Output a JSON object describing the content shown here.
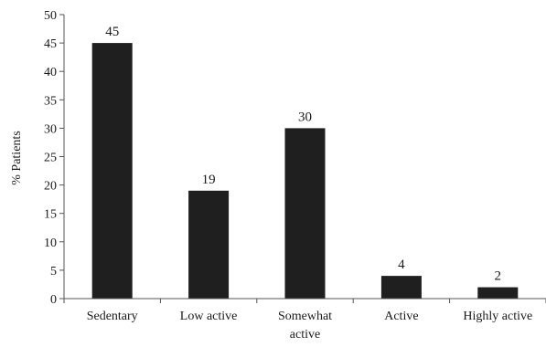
{
  "chart_data": {
    "type": "bar",
    "title": "",
    "xlabel": "",
    "ylabel": "% Patients",
    "categories": [
      [
        "Sedentary"
      ],
      [
        "Low active"
      ],
      [
        "Somewhat",
        "active"
      ],
      [
        "Active"
      ],
      [
        "Highly active"
      ]
    ],
    "values": [
      45,
      19,
      30,
      4,
      2
    ],
    "ylim": [
      0,
      50
    ],
    "yticks": [
      0,
      5,
      10,
      15,
      20,
      25,
      30,
      35,
      40,
      45,
      50
    ],
    "grid": false,
    "legend": "none",
    "bar_color": "#1f1f1f",
    "axis_color": "#555555"
  }
}
